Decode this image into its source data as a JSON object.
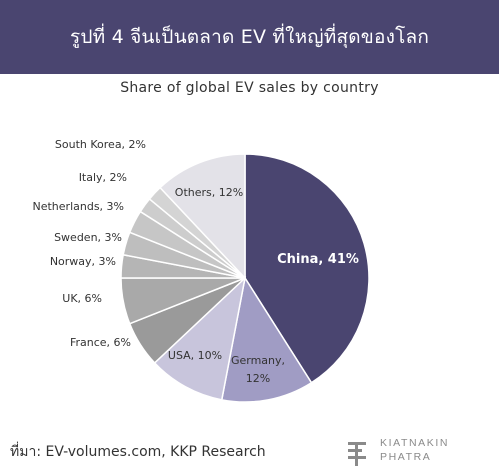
{
  "header": {
    "title": "รูปที่ 4 จีนเป็นตลาด EV ที่ใหญ่ที่สุดของโลก"
  },
  "chart_data": {
    "type": "pie",
    "title": "Share of global EV sales by country",
    "slices": [
      {
        "label": "China, 41%",
        "value": 41,
        "color": "#4a4570",
        "label_color": "#ffffff"
      },
      {
        "label": "Germany, 12%",
        "value": 12,
        "color": "#a09cc4",
        "label_color": "#333333"
      },
      {
        "label": "USA, 10%",
        "value": 10,
        "color": "#c8c5dc",
        "label_color": "#333333"
      },
      {
        "label": "France, 6%",
        "value": 6,
        "color": "#9a9a9a",
        "label_color": "#333333"
      },
      {
        "label": "UK, 6%",
        "value": 6,
        "color": "#a9a9a9",
        "label_color": "#333333"
      },
      {
        "label": "Norway, 3%",
        "value": 3,
        "color": "#b5b5b5",
        "label_color": "#333333"
      },
      {
        "label": "Sweden, 3%",
        "value": 3,
        "color": "#bebebe",
        "label_color": "#333333"
      },
      {
        "label": "Netherlands, 3%",
        "value": 3,
        "color": "#c6c6c6",
        "label_color": "#333333"
      },
      {
        "label": "Italy, 2%",
        "value": 2,
        "color": "#cdcdcd",
        "label_color": "#333333"
      },
      {
        "label": "South Korea, 2%",
        "value": 2,
        "color": "#d4d4d4",
        "label_color": "#333333"
      },
      {
        "label": "Others, 12%",
        "value": 12,
        "color": "#e3e2e8",
        "label_color": "#333333"
      }
    ]
  },
  "source": "ที่มา: EV-volumes.com, KKP Research",
  "logo": {
    "line1": "KIATNAKIN",
    "line2": "PHATRA"
  }
}
